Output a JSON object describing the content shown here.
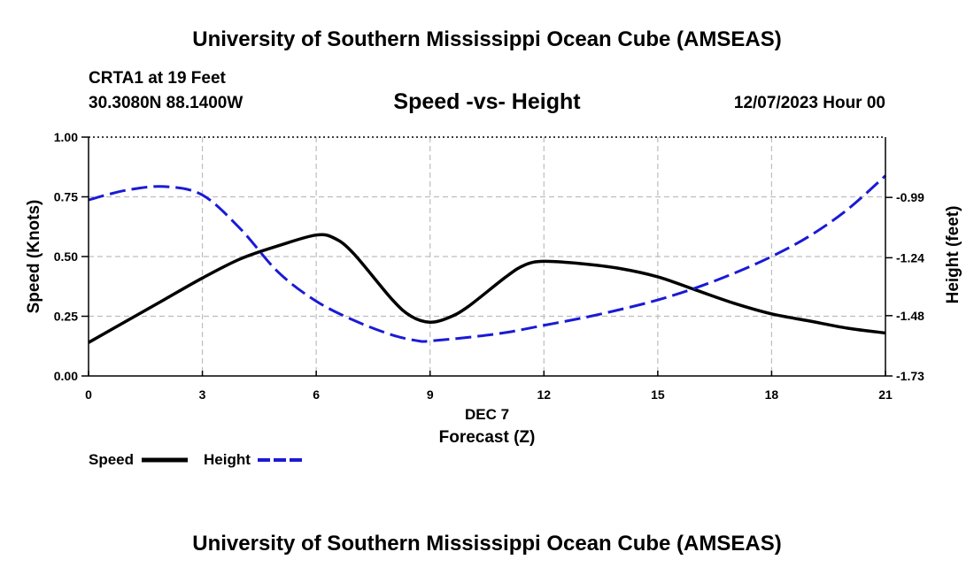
{
  "header": {
    "title": "University of Southern Mississippi Ocean Cube (AMSEAS)",
    "station": "CRTA1 at 19 Feet",
    "coords": "30.3080N  88.1400W",
    "subtitle": "Speed -vs- Height",
    "date": "12/07/2023 Hour 00"
  },
  "footer": {
    "title": "University of Southern Mississippi Ocean Cube (AMSEAS)"
  },
  "legend": {
    "speed_label": "Speed",
    "height_label": "Height"
  },
  "chart_data": {
    "type": "line",
    "xlabel": "Forecast (Z)",
    "xlabel_date": "DEC 7",
    "ylabel": "Speed (Knots)",
    "ylabel_right": "Height (feet)",
    "xlim": [
      0,
      21
    ],
    "ylim": [
      0,
      1
    ],
    "ylim_right": [
      -1.73,
      -0.74
    ],
    "x_ticks": [
      0,
      3,
      6,
      9,
      12,
      15,
      18,
      21
    ],
    "x_tick_labels": [
      "0",
      "3",
      "6",
      "9",
      "12",
      "15",
      "18",
      "21"
    ],
    "y_ticks": [
      0,
      0.25,
      0.5,
      0.75,
      1.0
    ],
    "y_tick_labels": [
      "0.00",
      "0.25",
      "0.50",
      "0.75",
      "1.00"
    ],
    "y_right_ticks": [
      -1.73,
      -1.48,
      -1.24,
      -0.99
    ],
    "y_right_tick_labels": [
      "-1.73",
      "-1.48",
      "-1.24",
      "-0.99"
    ],
    "grid": true,
    "series": [
      {
        "name": "Speed",
        "axis": "left",
        "color": "#000000",
        "dash": false,
        "x": [
          0,
          1,
          2,
          3,
          4,
          5,
          6,
          6.5,
          7,
          8,
          8.5,
          9,
          9.5,
          10,
          11,
          11.5,
          12,
          13,
          14,
          15,
          16,
          17,
          18,
          19,
          20,
          21
        ],
        "values": [
          0.14,
          0.23,
          0.32,
          0.41,
          0.49,
          0.545,
          0.59,
          0.575,
          0.51,
          0.32,
          0.25,
          0.225,
          0.245,
          0.29,
          0.415,
          0.465,
          0.48,
          0.47,
          0.45,
          0.415,
          0.36,
          0.305,
          0.26,
          0.23,
          0.2,
          0.18
        ]
      },
      {
        "name": "Height",
        "axis": "right",
        "color": "#1a1ad6",
        "dash": true,
        "x": [
          0,
          1,
          2,
          3,
          4,
          5,
          6,
          7,
          8,
          8.7,
          9,
          10,
          11,
          12,
          13,
          14,
          15,
          16,
          17,
          18,
          19,
          20,
          21
        ],
        "values": [
          -1.0,
          -0.96,
          -0.945,
          -0.98,
          -1.12,
          -1.3,
          -1.42,
          -1.5,
          -1.56,
          -1.585,
          -1.585,
          -1.57,
          -1.55,
          -1.52,
          -1.49,
          -1.455,
          -1.415,
          -1.365,
          -1.305,
          -1.235,
          -1.15,
          -1.04,
          -0.9
        ]
      }
    ]
  }
}
